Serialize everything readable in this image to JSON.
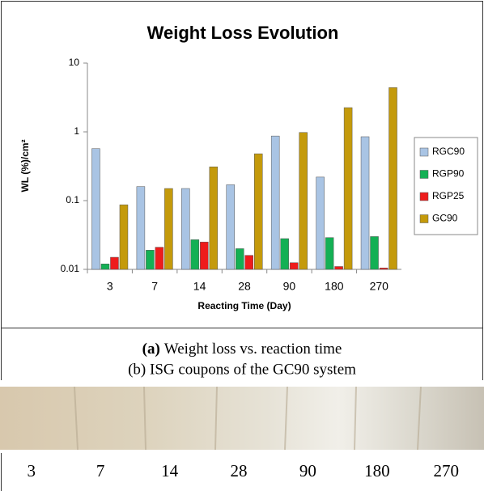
{
  "chart_data": {
    "type": "bar",
    "title": "Weight Loss Evolution",
    "x_label": "Reacting Time (Day)",
    "y_label": "WL (%)/cm²",
    "categories": [
      "3",
      "7",
      "14",
      "28",
      "90",
      "180",
      "270"
    ],
    "series": [
      {
        "name": "RGC90",
        "color": "#a9c4e4",
        "values": [
          0.57,
          0.16,
          0.15,
          0.17,
          0.87,
          0.22,
          0.85
        ]
      },
      {
        "name": "RGP90",
        "color": "#13b054",
        "values": [
          0.012,
          0.019,
          0.027,
          0.02,
          0.028,
          0.029,
          0.03
        ]
      },
      {
        "name": "RGP25",
        "color": "#ee1c1c",
        "values": [
          0.015,
          0.021,
          0.025,
          0.016,
          0.0125,
          0.011,
          0.0105
        ]
      },
      {
        "name": "GC90",
        "color": "#c49a0b",
        "values": [
          0.087,
          0.15,
          0.31,
          0.48,
          0.98,
          2.25,
          4.4
        ]
      }
    ],
    "ylim": [
      0.01,
      10
    ],
    "yticks": [
      0.01,
      0.1,
      1,
      10
    ],
    "log_scale": true,
    "grid": false,
    "legend": "right"
  },
  "caption_a": {
    "label": "(a)",
    "text": "Weight loss vs. reaction time"
  },
  "caption_b": "(b) ISG coupons of the GC90 system",
  "photo_labels": [
    "3",
    "7",
    "14",
    "28",
    "90",
    "180",
    "270"
  ]
}
